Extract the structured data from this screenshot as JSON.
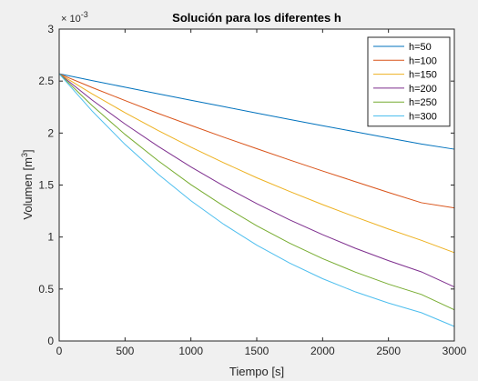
{
  "chart_data": {
    "type": "line",
    "title": "Solución para los diferentes h",
    "xlabel": "Tiempo [s]",
    "ylabel": "Volumen [m",
    "ylabel_sup": "3",
    "ylabel_end": "]",
    "y_exponent_base": "× 10",
    "y_exponent_power": "-3",
    "xlim": [
      0,
      3000
    ],
    "ylim": [
      0,
      0.003
    ],
    "x_ticks": [
      0,
      500,
      1000,
      1500,
      2000,
      2500,
      3000
    ],
    "x_tick_labels": [
      "0",
      "500",
      "1000",
      "1500",
      "2000",
      "2500",
      "3000"
    ],
    "y_ticks": [
      0,
      0.0005,
      0.001,
      0.0015,
      0.002,
      0.0025,
      0.003
    ],
    "y_tick_labels": [
      "0",
      "0.5",
      "1",
      "1.5",
      "2",
      "2.5",
      "3"
    ],
    "grid": false,
    "legend_position": "top-right",
    "x": [
      0,
      250,
      500,
      750,
      1000,
      1250,
      1500,
      1750,
      2000,
      2250,
      2500,
      2750,
      3000
    ],
    "series": [
      {
        "name": "h=50",
        "color": "#0072bd",
        "values": [
          0.00257,
          0.002505,
          0.002441,
          0.002378,
          0.002316,
          0.002254,
          0.002192,
          0.002131,
          0.002071,
          0.002012,
          0.001953,
          0.001895,
          0.001845
        ]
      },
      {
        "name": "h=100",
        "color": "#d95319",
        "values": [
          0.00257,
          0.002438,
          0.002313,
          0.00219,
          0.002074,
          0.00196,
          0.00185,
          0.001741,
          0.001635,
          0.001532,
          0.001429,
          0.00133,
          0.00128
        ]
      },
      {
        "name": "h=150",
        "color": "#edb120",
        "values": [
          0.00257,
          0.002377,
          0.002196,
          0.002025,
          0.001865,
          0.001714,
          0.00157,
          0.001438,
          0.001312,
          0.001192,
          0.001077,
          0.000968,
          0.00085
        ]
      },
      {
        "name": "h=200",
        "color": "#7e2f8e",
        "values": [
          0.00257,
          0.002318,
          0.002087,
          0.001873,
          0.001674,
          0.001491,
          0.001321,
          0.001165,
          0.001023,
          0.000891,
          0.000773,
          0.000665,
          0.00052
        ]
      },
      {
        "name": "h=250",
        "color": "#77ac30",
        "values": [
          0.00257,
          0.002264,
          0.001987,
          0.001735,
          0.001504,
          0.001297,
          0.001108,
          0.000941,
          0.000792,
          0.000662,
          0.000547,
          0.000448,
          0.0003
        ]
      },
      {
        "name": "h=300",
        "color": "#4dbeee",
        "values": [
          0.00257,
          0.002212,
          0.001891,
          0.001606,
          0.001349,
          0.001122,
          0.000922,
          0.000749,
          0.000599,
          0.000472,
          0.000365,
          0.000272,
          0.00014
        ]
      }
    ]
  }
}
